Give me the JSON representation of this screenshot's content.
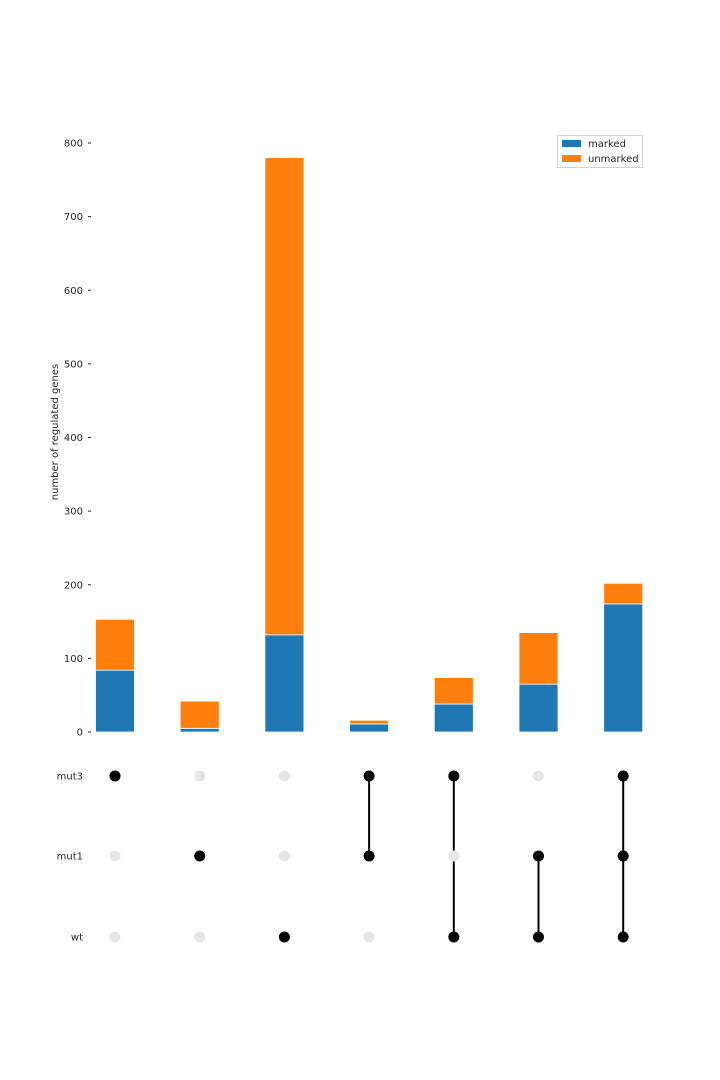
{
  "chart_data": {
    "type": "bar",
    "subtype": "upset-stacked",
    "ylabel": "number of regulated genes",
    "ylim": [
      0,
      800
    ],
    "yticks": [
      0,
      100,
      200,
      300,
      400,
      500,
      600,
      700,
      800
    ],
    "grid": false,
    "legend_position": "top-right",
    "sets": [
      "mut3",
      "mut1",
      "wt"
    ],
    "intersections": [
      [
        "mut3"
      ],
      [
        "mut1"
      ],
      [
        "wt"
      ],
      [
        "mut3",
        "mut1"
      ],
      [
        "mut3",
        "wt"
      ],
      [
        "mut1",
        "wt"
      ],
      [
        "mut3",
        "mut1",
        "wt"
      ]
    ],
    "series": [
      {
        "name": "marked",
        "color": "#1f77b4",
        "values": [
          84,
          5,
          132,
          11,
          38,
          65,
          174
        ]
      },
      {
        "name": "unmarked",
        "color": "#ff7f0e",
        "values": [
          69,
          37,
          648,
          5,
          36,
          70,
          28
        ]
      }
    ],
    "dot_active_color": "#000000",
    "dot_inactive_color": "#e6e6e6"
  }
}
